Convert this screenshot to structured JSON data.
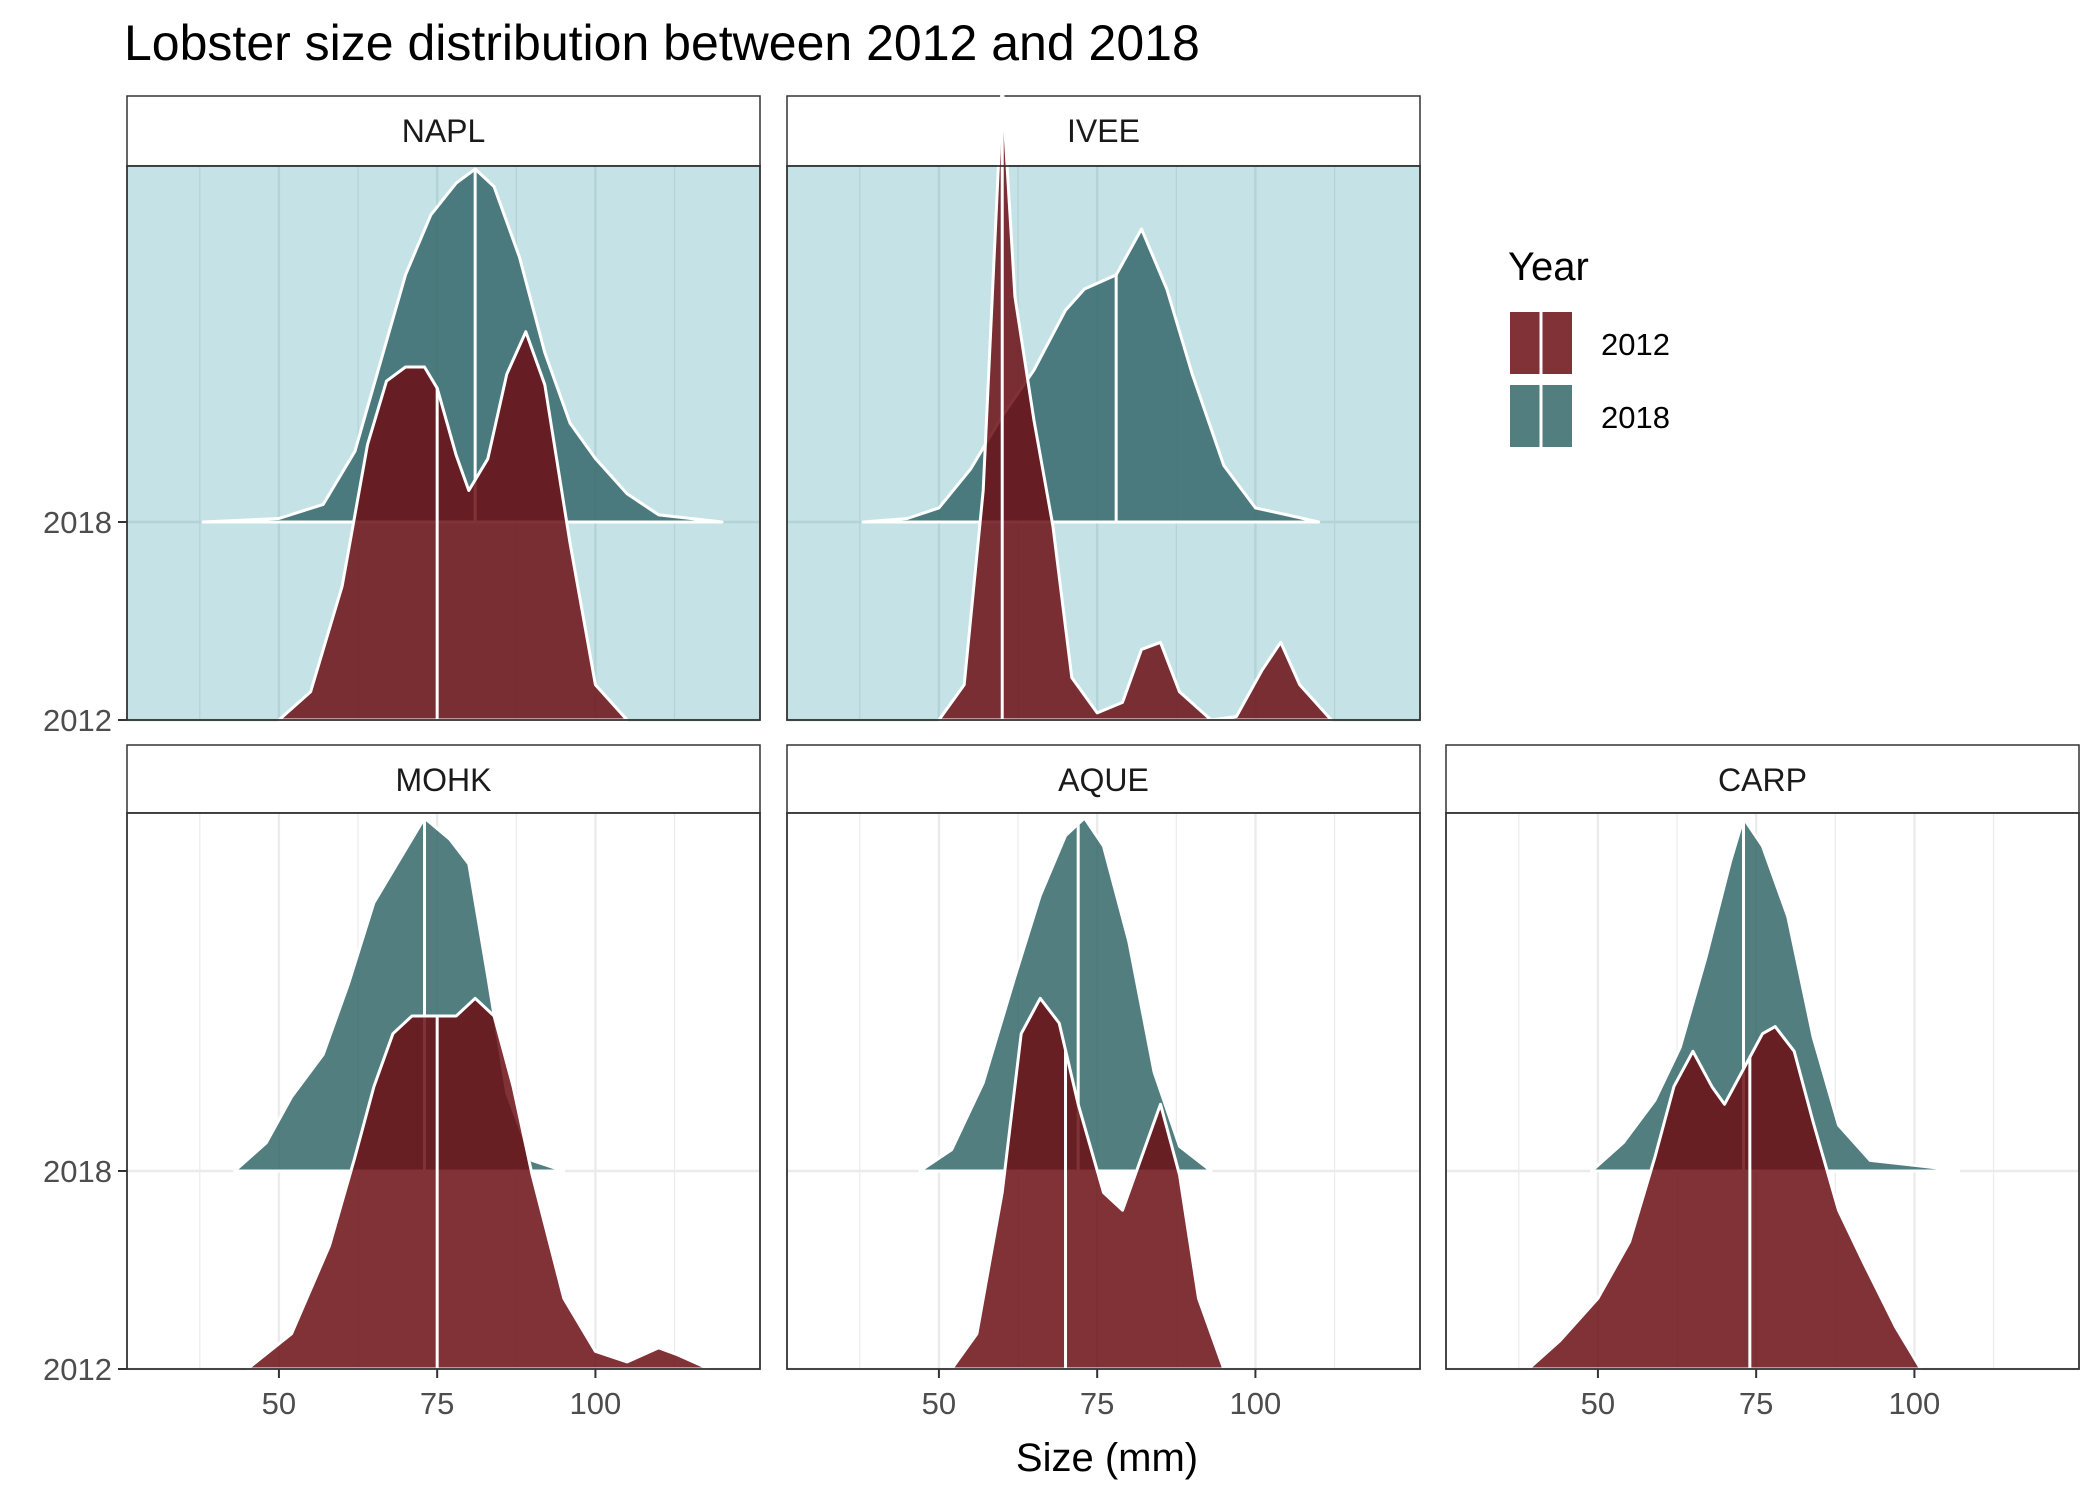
{
  "chart_data": {
    "type": "ridgeline-density",
    "title": "Lobster size distribution between 2012 and 2018",
    "xlabel": "Size (mm)",
    "ylabel": "",
    "xlim": [
      26,
      126
    ],
    "x_ticks": [
      50,
      75,
      100
    ],
    "y_categories": [
      "2012",
      "2018"
    ],
    "legend": {
      "title": "Year",
      "position": "right",
      "entries": [
        {
          "label": "2012",
          "color": "#6b0e14"
        },
        {
          "label": "2018",
          "color": "#34676a"
        }
      ]
    },
    "colors": {
      "y2012": "#6b0e14",
      "y2018": "#34676a",
      "highlight_panel_bg": "#c5e3e6",
      "outline": "#ffffff"
    },
    "facets": [
      {
        "site": "NAPL",
        "highlight": true,
        "series": {
          "2018": {
            "median": 81,
            "density": [
              [
                38,
                0
              ],
              [
                50,
                0.01
              ],
              [
                57,
                0.05
              ],
              [
                62,
                0.2
              ],
              [
                66,
                0.45
              ],
              [
                70,
                0.7
              ],
              [
                74,
                0.87
              ],
              [
                78,
                0.96
              ],
              [
                81,
                1.0
              ],
              [
                84,
                0.95
              ],
              [
                88,
                0.75
              ],
              [
                92,
                0.48
              ],
              [
                96,
                0.28
              ],
              [
                100,
                0.18
              ],
              [
                105,
                0.08
              ],
              [
                110,
                0.02
              ],
              [
                120,
                0
              ]
            ]
          },
          "2012": {
            "median": 75,
            "density": [
              [
                50,
                0
              ],
              [
                55,
                0.08
              ],
              [
                60,
                0.38
              ],
              [
                64,
                0.78
              ],
              [
                67,
                0.96
              ],
              [
                70,
                1.0
              ],
              [
                73,
                1.0
              ],
              [
                75,
                0.94
              ],
              [
                78,
                0.75
              ],
              [
                80,
                0.65
              ],
              [
                83,
                0.74
              ],
              [
                86,
                0.98
              ],
              [
                89,
                1.1
              ],
              [
                92,
                0.95
              ],
              [
                96,
                0.5
              ],
              [
                100,
                0.1
              ],
              [
                105,
                0
              ]
            ]
          }
        }
      },
      {
        "site": "IVEE",
        "highlight": true,
        "series": {
          "2018": {
            "median": 78,
            "density": [
              [
                38,
                0
              ],
              [
                45,
                0.01
              ],
              [
                50,
                0.04
              ],
              [
                55,
                0.15
              ],
              [
                60,
                0.3
              ],
              [
                65,
                0.43
              ],
              [
                70,
                0.6
              ],
              [
                73,
                0.66
              ],
              [
                78,
                0.7
              ],
              [
                82,
                0.83
              ],
              [
                86,
                0.66
              ],
              [
                90,
                0.42
              ],
              [
                95,
                0.16
              ],
              [
                100,
                0.04
              ],
              [
                105,
                0.02
              ],
              [
                110,
                0
              ]
            ]
          },
          "2012": {
            "median": 60,
            "density": [
              [
                50,
                0
              ],
              [
                54,
                0.1
              ],
              [
                57,
                0.65
              ],
              [
                60,
                1.8
              ],
              [
                62,
                1.2
              ],
              [
                65,
                0.85
              ],
              [
                68,
                0.55
              ],
              [
                71,
                0.12
              ],
              [
                75,
                0.02
              ],
              [
                79,
                0.05
              ],
              [
                82,
                0.2
              ],
              [
                85,
                0.22
              ],
              [
                88,
                0.08
              ],
              [
                93,
                0
              ],
              [
                97,
                0.01
              ],
              [
                101,
                0.14
              ],
              [
                104,
                0.22
              ],
              [
                107,
                0.1
              ],
              [
                112,
                0
              ]
            ]
          }
        }
      },
      {
        "site": "MOHK",
        "highlight": false,
        "series": {
          "2018": {
            "median": 73,
            "density": [
              [
                43,
                0
              ],
              [
                48,
                0.08
              ],
              [
                52,
                0.21
              ],
              [
                57,
                0.33
              ],
              [
                61,
                0.53
              ],
              [
                65,
                0.76
              ],
              [
                69,
                0.88
              ],
              [
                73,
                1.0
              ],
              [
                77,
                0.94
              ],
              [
                80,
                0.87
              ],
              [
                83,
                0.55
              ],
              [
                86,
                0.22
              ],
              [
                90,
                0.03
              ],
              [
                95,
                0
              ]
            ]
          },
          "2012": {
            "median": 75,
            "density": [
              [
                45,
                0
              ],
              [
                52,
                0.1
              ],
              [
                58,
                0.35
              ],
              [
                62,
                0.6
              ],
              [
                65,
                0.8
              ],
              [
                68,
                0.95
              ],
              [
                71,
                1.0
              ],
              [
                75,
                1.0
              ],
              [
                78,
                1.0
              ],
              [
                81,
                1.05
              ],
              [
                84,
                1.0
              ],
              [
                87,
                0.8
              ],
              [
                90,
                0.55
              ],
              [
                95,
                0.2
              ],
              [
                100,
                0.05
              ],
              [
                105,
                0.02
              ],
              [
                110,
                0.06
              ],
              [
                113,
                0.04
              ],
              [
                118,
                0
              ]
            ]
          }
        }
      },
      {
        "site": "AQUE",
        "highlight": false,
        "series": {
          "2018": {
            "median": 72,
            "density": [
              [
                47,
                0
              ],
              [
                52,
                0.06
              ],
              [
                57,
                0.25
              ],
              [
                62,
                0.55
              ],
              [
                66,
                0.78
              ],
              [
                70,
                0.95
              ],
              [
                73,
                1.0
              ],
              [
                76,
                0.92
              ],
              [
                80,
                0.65
              ],
              [
                84,
                0.28
              ],
              [
                88,
                0.07
              ],
              [
                93,
                0
              ]
            ]
          },
          "2012": {
            "median": 70,
            "density": [
              [
                52,
                0
              ],
              [
                56,
                0.1
              ],
              [
                60,
                0.5
              ],
              [
                63,
                0.95
              ],
              [
                66,
                1.05
              ],
              [
                69,
                0.98
              ],
              [
                72,
                0.75
              ],
              [
                76,
                0.5
              ],
              [
                79,
                0.45
              ],
              [
                82,
                0.6
              ],
              [
                85,
                0.75
              ],
              [
                88,
                0.55
              ],
              [
                91,
                0.2
              ],
              [
                95,
                0
              ]
            ]
          }
        }
      },
      {
        "site": "CARP",
        "highlight": false,
        "series": {
          "2018": {
            "median": 73,
            "density": [
              [
                49,
                0
              ],
              [
                54,
                0.08
              ],
              [
                59,
                0.2
              ],
              [
                63,
                0.35
              ],
              [
                67,
                0.6
              ],
              [
                71,
                0.88
              ],
              [
                73,
                1.0
              ],
              [
                76,
                0.92
              ],
              [
                80,
                0.72
              ],
              [
                84,
                0.38
              ],
              [
                88,
                0.13
              ],
              [
                93,
                0.03
              ],
              [
                98,
                0.02
              ],
              [
                103,
                0.01
              ],
              [
                107,
                0
              ]
            ]
          },
          "2012": {
            "median": 74,
            "density": [
              [
                39,
                0
              ],
              [
                44,
                0.08
              ],
              [
                50,
                0.2
              ],
              [
                55,
                0.36
              ],
              [
                59,
                0.6
              ],
              [
                62,
                0.8
              ],
              [
                65,
                0.9
              ],
              [
                68,
                0.8
              ],
              [
                70,
                0.75
              ],
              [
                73,
                0.85
              ],
              [
                76,
                0.95
              ],
              [
                78,
                0.97
              ],
              [
                81,
                0.9
              ],
              [
                84,
                0.7
              ],
              [
                88,
                0.45
              ],
              [
                92,
                0.3
              ],
              [
                97,
                0.12
              ],
              [
                101,
                0
              ]
            ]
          }
        }
      }
    ]
  }
}
